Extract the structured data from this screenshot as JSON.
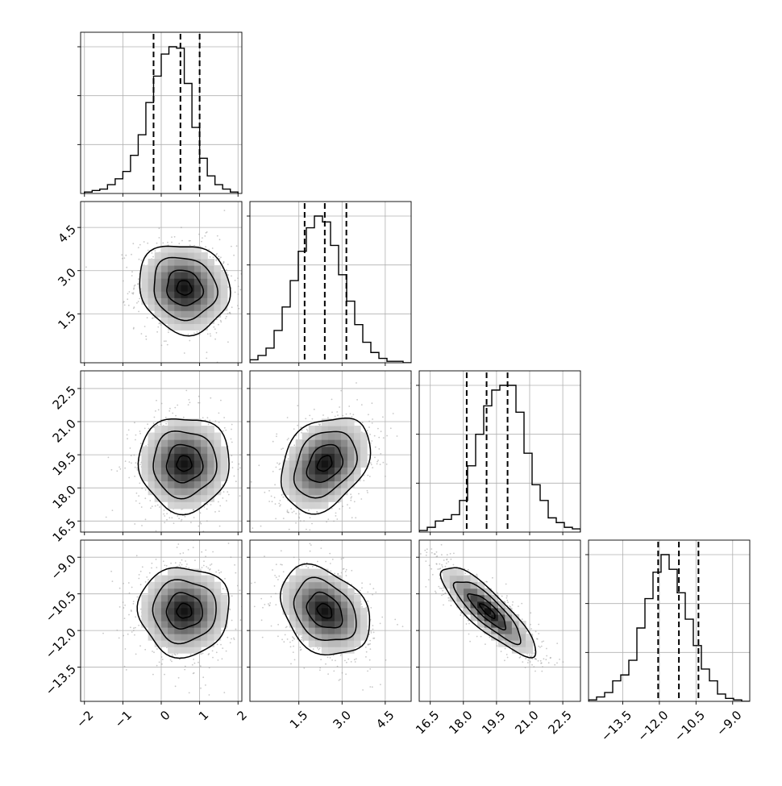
{
  "chart_data": {
    "type": "corner",
    "grid": true,
    "quantile_lines": "dashed",
    "parameters": [
      {
        "ticks": [
          "−2",
          "−1",
          "0",
          "1",
          "2"
        ],
        "tick_values": [
          -2,
          -1,
          0,
          1,
          2
        ],
        "range": [
          -2.1,
          2.1
        ],
        "quantiles": [
          -0.2,
          0.5,
          1.0
        ],
        "hist_bin_width": 0.2,
        "hist_counts": [
          1,
          2,
          3,
          6,
          10,
          15,
          26,
          40,
          62,
          80,
          95,
          100,
          99,
          75,
          45,
          24,
          12,
          6,
          3,
          1
        ]
      },
      {
        "ticks": [
          "1.5",
          "3.0",
          "4.5"
        ],
        "tick_values": [
          1.5,
          3.0,
          4.5
        ],
        "range": [
          -0.2,
          5.4
        ],
        "quantiles": [
          1.7,
          2.4,
          3.15
        ],
        "hist_bin_width": 0.28,
        "hist_counts": [
          2,
          5,
          10,
          22,
          38,
          56,
          76,
          92,
          100,
          96,
          80,
          60,
          42,
          26,
          14,
          7,
          3,
          1,
          1,
          0
        ]
      },
      {
        "ticks": [
          "16.5",
          "18.0",
          "19.5",
          "21.0",
          "22.5"
        ],
        "tick_values": [
          16.5,
          18.0,
          19.5,
          21.0,
          22.5
        ],
        "range": [
          16.0,
          23.3
        ],
        "quantiles": [
          18.15,
          19.05,
          20.0
        ],
        "hist_bin_width": 0.365,
        "hist_counts": [
          1,
          3,
          7,
          8,
          11,
          20,
          42,
          62,
          80,
          90,
          93,
          93,
          76,
          50,
          30,
          20,
          9,
          6,
          3,
          2
        ]
      },
      {
        "ticks": [
          "−13.5",
          "−12.0",
          "−10.5",
          "−9.0"
        ],
        "tick_values": [
          -13.5,
          -12.0,
          -10.5,
          -9.0
        ],
        "range": [
          -14.9,
          -8.3
        ],
        "quantiles": [
          -12.05,
          -11.2,
          -10.4
        ],
        "hist_bin_width": 0.33,
        "hist_counts": [
          1,
          3,
          6,
          14,
          18,
          28,
          50,
          70,
          88,
          100,
          90,
          74,
          56,
          38,
          22,
          14,
          5,
          2,
          1,
          0
        ]
      }
    ],
    "pairs": [
      {
        "x": 0,
        "y": 1,
        "center": [
          0.6,
          2.4
        ],
        "sigma": [
          0.55,
          0.72
        ],
        "rho": -0.1
      },
      {
        "x": 0,
        "y": 2,
        "center": [
          0.6,
          19.1
        ],
        "sigma": [
          0.55,
          1.0
        ],
        "rho": 0.0
      },
      {
        "x": 1,
        "y": 2,
        "center": [
          2.4,
          19.1
        ],
        "sigma": [
          0.72,
          1.0
        ],
        "rho": 0.3
      },
      {
        "x": 0,
        "y": 3,
        "center": [
          0.6,
          -11.2
        ],
        "sigma": [
          0.55,
          0.85
        ],
        "rho": 0.0
      },
      {
        "x": 1,
        "y": 3,
        "center": [
          2.4,
          -11.2
        ],
        "sigma": [
          0.72,
          0.85
        ],
        "rho": -0.3
      },
      {
        "x": 2,
        "y": 3,
        "center": [
          19.1,
          -11.2
        ],
        "sigma": [
          1.0,
          0.85
        ],
        "rho": -0.85
      }
    ]
  }
}
